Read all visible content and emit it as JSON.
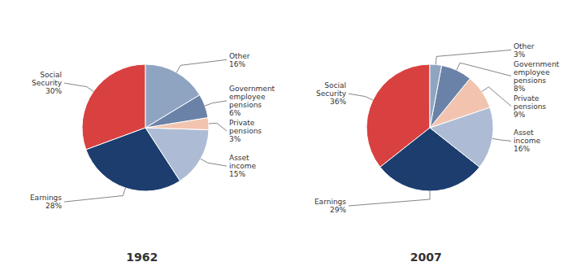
{
  "chart_data": [
    {
      "type": "pie",
      "title": "1962",
      "categories": [
        "Social\nSecurity",
        "Earnings",
        "Asset\nincome",
        "Private\npensions",
        "Government\nemployee\npensions",
        "Other"
      ],
      "values": [
        30,
        28,
        15,
        3,
        6,
        16
      ],
      "value_labels": [
        "30%",
        "28%",
        "15%",
        "3%",
        "6%",
        "16%"
      ],
      "colors": [
        "#d94040",
        "#1c3d6e",
        "#adbcd4",
        "#f2c4b0",
        "#6b82a8",
        "#8fa4c0"
      ],
      "data_labels": true
    },
    {
      "type": "pie",
      "title": "2007",
      "categories": [
        "Social\nSecurity",
        "Earnings",
        "Asset\nincome",
        "Private\npensions",
        "Government\nemployee\npensions",
        "Other"
      ],
      "values": [
        36,
        29,
        16,
        9,
        8,
        3
      ],
      "value_labels": [
        "36%",
        "29%",
        "16%",
        "9%",
        "8%",
        "3%"
      ],
      "colors": [
        "#d94040",
        "#1c3d6e",
        "#adbcd4",
        "#f2c4b0",
        "#6b82a8",
        "#8fa4c0"
      ],
      "data_labels": true
    }
  ]
}
